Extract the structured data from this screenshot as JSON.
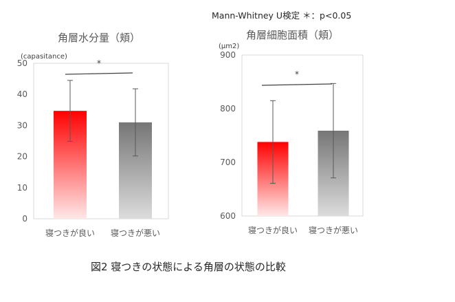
{
  "page": {
    "test_note": "Mann-Whitney U検定 ＊：p<0.05",
    "caption": "図2  寝つきの状態による角層の状態の比較"
  },
  "colors": {
    "good_top": "#ff0000",
    "good_bottom": "#ffe8e8",
    "bad_top": "#767676",
    "bad_bottom": "#dcdcdc",
    "axis": "#bfbfbf",
    "text": "#595959",
    "caption": "#262626"
  },
  "chart_data": [
    {
      "type": "bar",
      "title": "角層水分量（頬）",
      "unit_label": "(capasitance)",
      "categories": [
        "寝つきが良い",
        "寝つきが悪い"
      ],
      "values": [
        34.7,
        31.0
      ],
      "error": [
        9.8,
        10.8
      ],
      "ylim": [
        0,
        50
      ],
      "yticks": [
        0,
        10,
        20,
        30,
        40,
        50
      ],
      "significance": "*",
      "grid": false
    },
    {
      "type": "bar",
      "title": "角層細胞面積（頬）",
      "unit_label": "(μm2)",
      "categories": [
        "寝つきが良い",
        "寝つきが悪い"
      ],
      "values": [
        738,
        759
      ],
      "error": [
        77,
        88
      ],
      "ylim": [
        600,
        900
      ],
      "yticks": [
        600,
        700,
        800,
        900
      ],
      "significance": "*",
      "grid": false
    }
  ]
}
